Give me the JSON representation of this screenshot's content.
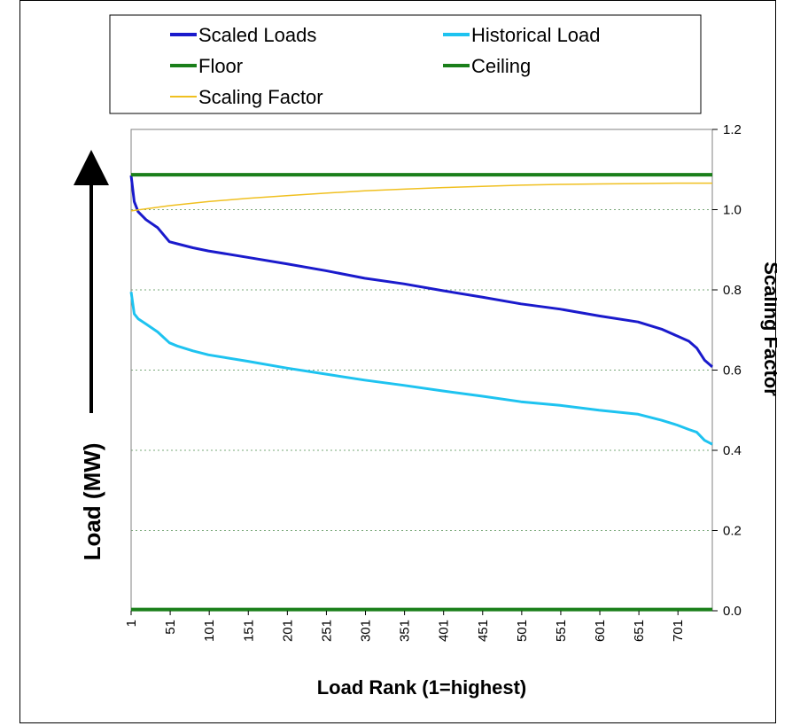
{
  "chart_data": {
    "type": "line",
    "title": "",
    "xlabel": "Load Rank (1=highest)",
    "ylabel_left": "Load (MW)",
    "ylabel_right": "Scaling Factor",
    "x_range": [
      1,
      745
    ],
    "x_ticks": [
      "1",
      "51",
      "101",
      "151",
      "201",
      "251",
      "301",
      "351",
      "401",
      "451",
      "501",
      "551",
      "601",
      "651",
      "701"
    ],
    "y_right_range": [
      0.0,
      1.2
    ],
    "y_right_ticks": [
      "0.0",
      "0.2",
      "0.4",
      "0.6",
      "0.8",
      "1.0",
      "1.2"
    ],
    "grid": "horizontal dotted",
    "legend_position": "top",
    "series": [
      {
        "name": "Scaled Loads",
        "color": "#1a1acc",
        "axis": "right",
        "points": [
          [
            1,
            1.085
          ],
          [
            5,
            1.02
          ],
          [
            10,
            0.995
          ],
          [
            20,
            0.975
          ],
          [
            35,
            0.955
          ],
          [
            50,
            0.92
          ],
          [
            60,
            0.915
          ],
          [
            80,
            0.905
          ],
          [
            100,
            0.897
          ],
          [
            150,
            0.881
          ],
          [
            200,
            0.865
          ],
          [
            250,
            0.848
          ],
          [
            300,
            0.829
          ],
          [
            350,
            0.815
          ],
          [
            400,
            0.798
          ],
          [
            450,
            0.782
          ],
          [
            500,
            0.765
          ],
          [
            550,
            0.752
          ],
          [
            600,
            0.735
          ],
          [
            650,
            0.72
          ],
          [
            680,
            0.702
          ],
          [
            700,
            0.685
          ],
          [
            715,
            0.672
          ],
          [
            725,
            0.655
          ],
          [
            735,
            0.625
          ],
          [
            745,
            0.608
          ]
        ]
      },
      {
        "name": "Historical Load",
        "color": "#1ec3f0",
        "axis": "right",
        "points": [
          [
            1,
            0.795
          ],
          [
            5,
            0.74
          ],
          [
            10,
            0.728
          ],
          [
            20,
            0.715
          ],
          [
            35,
            0.695
          ],
          [
            50,
            0.668
          ],
          [
            60,
            0.66
          ],
          [
            80,
            0.648
          ],
          [
            100,
            0.638
          ],
          [
            150,
            0.622
          ],
          [
            200,
            0.605
          ],
          [
            250,
            0.59
          ],
          [
            300,
            0.575
          ],
          [
            350,
            0.562
          ],
          [
            400,
            0.548
          ],
          [
            450,
            0.535
          ],
          [
            500,
            0.521
          ],
          [
            550,
            0.512
          ],
          [
            600,
            0.5
          ],
          [
            650,
            0.49
          ],
          [
            680,
            0.475
          ],
          [
            700,
            0.463
          ],
          [
            715,
            0.452
          ],
          [
            725,
            0.445
          ],
          [
            735,
            0.425
          ],
          [
            745,
            0.415
          ]
        ]
      },
      {
        "name": "Floor",
        "color": "#1a7f1a",
        "axis": "right",
        "points": [
          [
            1,
            0.003
          ],
          [
            745,
            0.003
          ]
        ]
      },
      {
        "name": "Ceiling",
        "color": "#1a7f1a",
        "axis": "right",
        "points": [
          [
            1,
            1.087
          ],
          [
            745,
            1.087
          ]
        ]
      },
      {
        "name": "Scaling Factor",
        "color": "#f0c020",
        "axis": "right",
        "points": [
          [
            1,
            0.997
          ],
          [
            50,
            1.01
          ],
          [
            100,
            1.02
          ],
          [
            150,
            1.028
          ],
          [
            200,
            1.035
          ],
          [
            250,
            1.041
          ],
          [
            300,
            1.047
          ],
          [
            350,
            1.051
          ],
          [
            400,
            1.055
          ],
          [
            450,
            1.058
          ],
          [
            500,
            1.061
          ],
          [
            550,
            1.063
          ],
          [
            600,
            1.064
          ],
          [
            650,
            1.065
          ],
          [
            700,
            1.066
          ],
          [
            745,
            1.066
          ]
        ]
      }
    ]
  }
}
